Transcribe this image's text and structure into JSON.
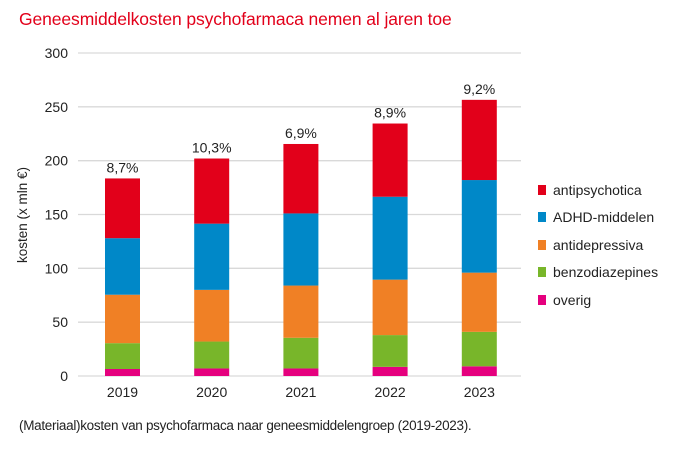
{
  "title": "Geneesmiddelkosten psychofarmaca nemen al jaren toe",
  "caption": "(Materiaal)kosten van psychofarmaca naar geneesmiddelengroep (2019-2023).",
  "chart_data": {
    "type": "bar",
    "stacked": true,
    "title": "Geneesmiddelkosten psychofarmaca nemen al jaren toe",
    "xlabel": "",
    "ylabel": "kosten (x mln €)",
    "ylim": [
      0,
      300
    ],
    "yticks": [
      0,
      50,
      100,
      150,
      200,
      250,
      300
    ],
    "ytick_labels": [
      "0",
      "50",
      "100",
      "150",
      "200",
      "250",
      "300"
    ],
    "grid": true,
    "legend_position": "right",
    "categories": [
      "2019",
      "2020",
      "2021",
      "2022",
      "2023"
    ],
    "series": [
      {
        "name": "overig",
        "color": "#e5007e",
        "values": [
          6.5,
          7,
          7,
          8.5,
          9
        ]
      },
      {
        "name": "benzodiazepines",
        "color": "#78b62a",
        "values": [
          24,
          25,
          28.5,
          29.5,
          32
        ]
      },
      {
        "name": "antidepressiva",
        "color": "#f08025",
        "values": [
          45,
          48,
          48.5,
          51.5,
          55
        ]
      },
      {
        "name": "ADHD-middelen",
        "color": "#0088c8",
        "values": [
          52.5,
          61.5,
          67,
          77,
          86
        ]
      },
      {
        "name": "antipsychotica",
        "color": "#e2001a",
        "values": [
          55.5,
          60.5,
          64.5,
          68,
          74.5
        ]
      }
    ],
    "annotations": [
      "8,7%",
      "10,3%",
      "6,9%",
      "8,9%",
      "9,2%"
    ],
    "legend": [
      "antipsychotica",
      "ADHD-middelen",
      "antidepressiva",
      "benzodiazepines",
      "overig"
    ]
  }
}
